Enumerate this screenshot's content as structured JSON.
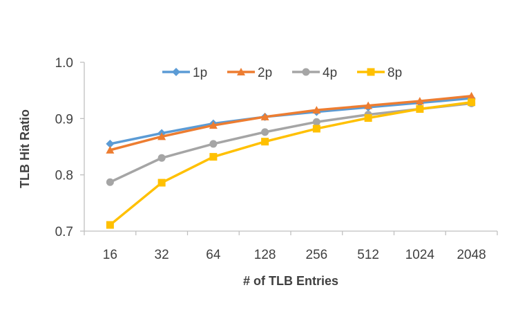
{
  "chart_data": {
    "type": "line",
    "title": "",
    "xlabel": "# of TLB Entries",
    "ylabel": "TLB Hit Ratio",
    "categories": [
      "16",
      "32",
      "64",
      "128",
      "256",
      "512",
      "1024",
      "2048"
    ],
    "ylim": [
      0.7,
      1.0
    ],
    "yticks": [
      "0.7",
      "0.8",
      "0.9",
      "1.0"
    ],
    "grid": false,
    "legend_position": "top",
    "series": [
      {
        "name": "1p",
        "color": "#5B9BD5",
        "marker": "diamond",
        "values": [
          0.855,
          0.874,
          0.891,
          0.903,
          0.912,
          0.92,
          0.928,
          0.936
        ]
      },
      {
        "name": "2p",
        "color": "#ED7D31",
        "marker": "triangle",
        "values": [
          0.844,
          0.868,
          0.888,
          0.903,
          0.915,
          0.923,
          0.931,
          0.94
        ]
      },
      {
        "name": "4p",
        "color": "#A5A5A5",
        "marker": "circle",
        "values": [
          0.787,
          0.83,
          0.855,
          0.876,
          0.894,
          0.907,
          0.917,
          0.927
        ]
      },
      {
        "name": "8p",
        "color": "#FFC000",
        "marker": "square",
        "values": [
          0.711,
          0.786,
          0.832,
          0.859,
          0.882,
          0.901,
          0.917,
          0.929
        ]
      }
    ]
  }
}
